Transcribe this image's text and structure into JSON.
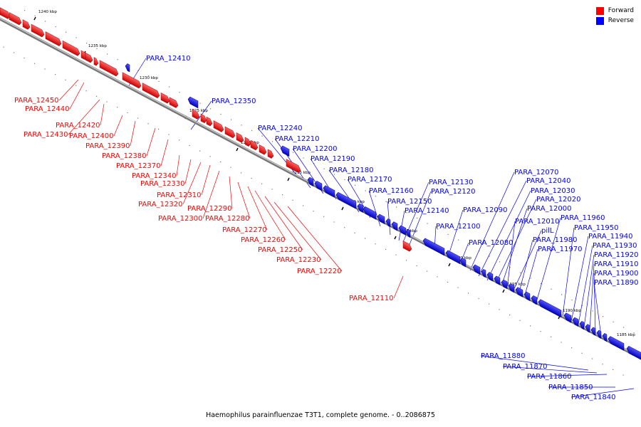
{
  "caption": "Haemophilus parainfluenzae T3T1, complete genome. - 0..2086875",
  "legend": [
    {
      "label": "Forward",
      "color": "#ff0000"
    },
    {
      "label": "Reverse",
      "color": "#0000ff"
    }
  ],
  "colors": {
    "forward": "#ff0000",
    "reverse": "#0000ff",
    "backbone": "#888888"
  },
  "scale_labels": [
    "1240 kbp",
    "1235 kbp",
    "1230 kbp",
    "1225 kbp",
    "1220 kbp",
    "1215 kbp",
    "1210 kbp",
    "1205 kbp",
    "1200 kbp",
    "1195 kbp",
    "1190 kbp",
    "1185 kbp"
  ],
  "genes": [
    {
      "label": "PARA_12450",
      "strand": "forward"
    },
    {
      "label": "PARA_12440",
      "strand": "forward"
    },
    {
      "label": "PARA_12430",
      "strand": "forward"
    },
    {
      "label": "PARA_12420",
      "strand": "forward"
    },
    {
      "label": "PARA_12410",
      "strand": "reverse"
    },
    {
      "label": "PARA_12400",
      "strand": "forward"
    },
    {
      "label": "PARA_12390",
      "strand": "forward"
    },
    {
      "label": "PARA_12380",
      "strand": "forward"
    },
    {
      "label": "PARA_12370",
      "strand": "forward"
    },
    {
      "label": "PARA_12350",
      "strand": "reverse"
    },
    {
      "label": "PARA_12340",
      "strand": "forward"
    },
    {
      "label": "PARA_12330",
      "strand": "forward"
    },
    {
      "label": "PARA_12320",
      "strand": "forward"
    },
    {
      "label": "PARA_12310",
      "strand": "forward"
    },
    {
      "label": "PARA_12300",
      "strand": "forward"
    },
    {
      "label": "PARA_12290",
      "strand": "forward"
    },
    {
      "label": "PARA_12280",
      "strand": "forward"
    },
    {
      "label": "PARA_12270",
      "strand": "forward"
    },
    {
      "label": "PARA_12260",
      "strand": "forward"
    },
    {
      "label": "PARA_12250",
      "strand": "forward"
    },
    {
      "label": "PARA_12240",
      "strand": "reverse"
    },
    {
      "label": "PARA_12230",
      "strand": "forward"
    },
    {
      "label": "PARA_12220",
      "strand": "forward"
    },
    {
      "label": "PARA_12210",
      "strand": "reverse"
    },
    {
      "label": "PARA_12200",
      "strand": "reverse"
    },
    {
      "label": "PARA_12190",
      "strand": "reverse"
    },
    {
      "label": "PARA_12180",
      "strand": "reverse"
    },
    {
      "label": "PARA_12170",
      "strand": "reverse"
    },
    {
      "label": "PARA_12160",
      "strand": "reverse"
    },
    {
      "label": "PARA_12150",
      "strand": "reverse"
    },
    {
      "label": "PARA_12140",
      "strand": "reverse"
    },
    {
      "label": "PARA_12130",
      "strand": "reverse"
    },
    {
      "label": "PARA_12120",
      "strand": "reverse"
    },
    {
      "label": "PARA_12110",
      "strand": "forward"
    },
    {
      "label": "PARA_12100",
      "strand": "reverse"
    },
    {
      "label": "PARA_12090",
      "strand": "reverse"
    },
    {
      "label": "PARA_12080",
      "strand": "reverse"
    },
    {
      "label": "PARA_12070",
      "strand": "reverse"
    },
    {
      "label": "PARA_12040",
      "strand": "reverse"
    },
    {
      "label": "PARA_12030",
      "strand": "reverse"
    },
    {
      "label": "PARA_12020",
      "strand": "reverse"
    },
    {
      "label": "PARA_12000",
      "strand": "reverse"
    },
    {
      "label": "PARA_12010",
      "strand": "reverse"
    },
    {
      "label": "pilL",
      "strand": "reverse"
    },
    {
      "label": "PARA_11980",
      "strand": "reverse"
    },
    {
      "label": "PARA_11970",
      "strand": "reverse"
    },
    {
      "label": "PARA_11960",
      "strand": "reverse"
    },
    {
      "label": "PARA_11950",
      "strand": "reverse"
    },
    {
      "label": "PARA_11940",
      "strand": "reverse"
    },
    {
      "label": "PARA_11930",
      "strand": "reverse"
    },
    {
      "label": "PARA_11920",
      "strand": "reverse"
    },
    {
      "label": "PARA_11910",
      "strand": "reverse"
    },
    {
      "label": "PARA_11900",
      "strand": "reverse"
    },
    {
      "label": "PARA_11890",
      "strand": "reverse"
    },
    {
      "label": "PARA_11880",
      "strand": "reverse"
    },
    {
      "label": "PARA_11870",
      "strand": "reverse"
    },
    {
      "label": "PARA_11860",
      "strand": "reverse"
    },
    {
      "label": "PARA_11850",
      "strand": "reverse"
    },
    {
      "label": "PARA_11840",
      "strand": "reverse"
    }
  ]
}
